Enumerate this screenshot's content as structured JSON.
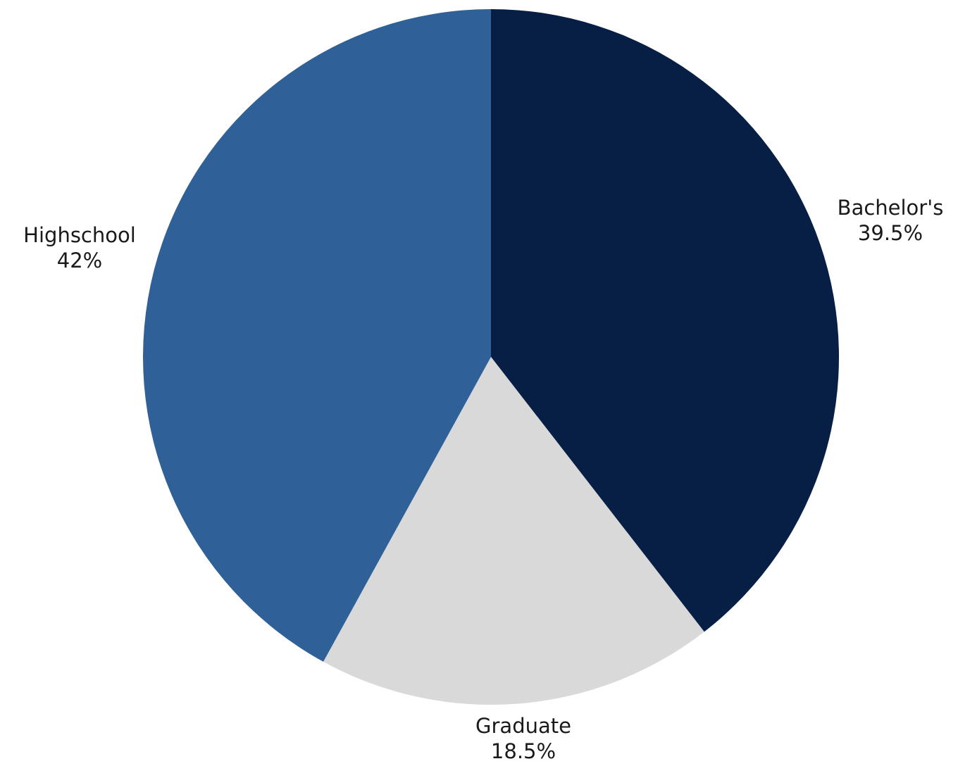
{
  "chart_data": {
    "type": "pie",
    "start_angle_deg": 0,
    "direction": "clockwise",
    "slices": [
      {
        "label": "Bachelor's",
        "value": 39.5,
        "value_label": "39.5%",
        "color": "#071f45"
      },
      {
        "label": "Graduate",
        "value": 18.5,
        "value_label": "18.5%",
        "color": "#d9d9d9"
      },
      {
        "label": "Highschool",
        "value": 42,
        "value_label": "42%",
        "color": "#306098"
      }
    ]
  }
}
